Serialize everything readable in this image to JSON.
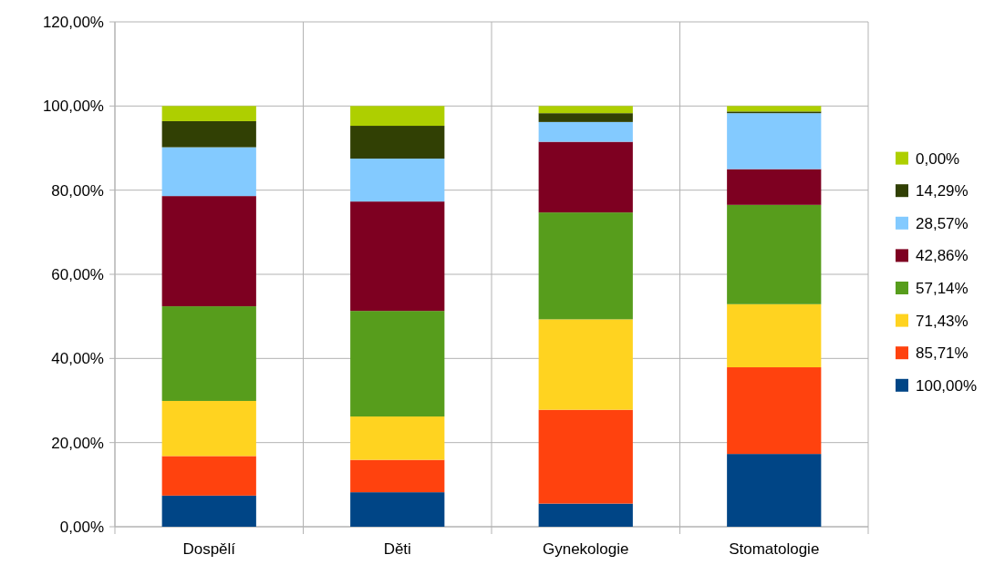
{
  "chart_data": {
    "type": "bar",
    "stacked": true,
    "categories": [
      "Dospělí",
      "Děti",
      "Gynekologie",
      "Stomatologie"
    ],
    "series": [
      {
        "name": "100,00%",
        "color": "#004586",
        "values": [
          7.4,
          8.2,
          5.5,
          17.3
        ]
      },
      {
        "name": "85,71%",
        "color": "#ff420e",
        "values": [
          9.4,
          7.7,
          22.3,
          20.6
        ]
      },
      {
        "name": "71,43%",
        "color": "#ffd320",
        "values": [
          13.1,
          10.3,
          21.5,
          15.0
        ]
      },
      {
        "name": "57,14%",
        "color": "#579d1c",
        "values": [
          22.5,
          25.1,
          25.4,
          23.6
        ]
      },
      {
        "name": "42,86%",
        "color": "#7e0021",
        "values": [
          26.2,
          26.0,
          16.8,
          8.5
        ]
      },
      {
        "name": "28,57%",
        "color": "#83caff",
        "values": [
          11.6,
          10.2,
          4.7,
          13.3
        ]
      },
      {
        "name": "14,29%",
        "color": "#314004",
        "values": [
          6.2,
          7.8,
          2.1,
          0.4
        ]
      },
      {
        "name": "0,00%",
        "color": "#aecf00",
        "values": [
          3.6,
          4.7,
          1.7,
          1.3
        ]
      }
    ],
    "ylim": [
      0,
      120
    ],
    "yticks": [
      {
        "value": 0,
        "label": "0,00%"
      },
      {
        "value": 20,
        "label": "20,00%"
      },
      {
        "value": 40,
        "label": "40,00%"
      },
      {
        "value": 60,
        "label": "60,00%"
      },
      {
        "value": 80,
        "label": "80,00%"
      },
      {
        "value": 100,
        "label": "100,00%"
      },
      {
        "value": 120,
        "label": "120,00%"
      }
    ],
    "grid": true,
    "legend": "right"
  }
}
